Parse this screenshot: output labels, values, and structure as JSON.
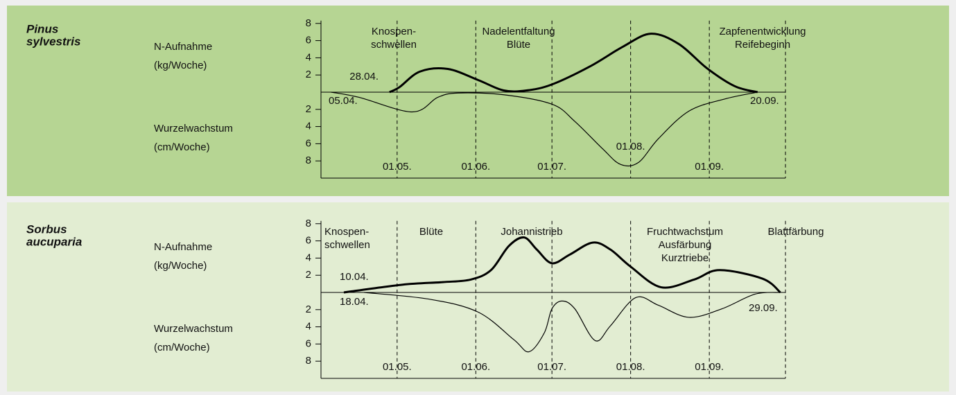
{
  "chart_data": [
    {
      "type": "line",
      "title": [
        "Pinus",
        "sylvestris"
      ],
      "phases": [
        [
          "Knospen-",
          "schwellen"
        ],
        [
          "Nadelentfaltung",
          "Blüte"
        ],
        [
          "Zapfenentwicklung",
          "Reifebeginn"
        ]
      ],
      "xlim": [
        "01.04.",
        "01.10."
      ],
      "xticks": [
        "01.05.",
        "01.06.",
        "01.07.",
        "01.08.",
        "01.09."
      ],
      "grid": true,
      "ylim": [
        0,
        8
      ],
      "yticks": [
        2,
        4,
        6,
        8
      ],
      "y2lim": [
        0,
        10
      ],
      "y2ticks": [
        2,
        4,
        6,
        8
      ],
      "y2_inverted": true,
      "series": [
        {
          "name": "N-Aufnahme",
          "unit": "(kg/Woche)",
          "color": "#000000",
          "line_width": 3,
          "x": [
            "28.04.",
            "02.05.",
            "10.05.",
            "21.05.",
            "02.06.",
            "12.06.",
            "21.06.",
            "01.07.",
            "16.07.",
            "29.07.",
            "09.08.",
            "20.08.",
            "31.08.",
            "11.09.",
            "20.09."
          ],
          "values": [
            0,
            0.6,
            2.4,
            2.7,
            1.4,
            0.2,
            0.2,
            0.9,
            3,
            5.3,
            6.8,
            5.6,
            2.8,
            0.7,
            0
          ]
        },
        {
          "name": "Wurzelwachstum",
          "unit": "(cm/Woche)",
          "color": "#000000",
          "line_width": 1.2,
          "axis": "y2",
          "x": [
            "05.04.",
            "16.04.",
            "07.05.",
            "17.05.",
            "25.05.",
            "12.06.",
            "01.07.",
            "10.07.",
            "21.07.",
            "28.07.",
            "04.08.",
            "12.08.",
            "24.08.",
            "07.09.",
            "20.09."
          ],
          "values": [
            0,
            0.6,
            2.3,
            0.6,
            0.1,
            0.3,
            1.4,
            3.4,
            6.6,
            8.4,
            8.2,
            5.4,
            2.2,
            0.8,
            0
          ]
        }
      ]
    },
    {
      "type": "line",
      "title": [
        "Sorbus",
        "aucuparia"
      ],
      "phases": [
        [
          "Knospen-",
          "schwellen"
        ],
        [
          "Blüte"
        ],
        [
          "Johannistrieb"
        ],
        [
          "Fruchtwachstum",
          "Ausfärbung",
          "Kurztriebe"
        ],
        [
          "Blattfärbung"
        ]
      ],
      "xlim": [
        "01.04.",
        "01.10."
      ],
      "xticks": [
        "01.05.",
        "01.06.",
        "01.07.",
        "01.08.",
        "01.09."
      ],
      "grid": true,
      "ylim": [
        0,
        8
      ],
      "yticks": [
        2,
        4,
        6,
        8
      ],
      "y2lim": [
        0,
        10
      ],
      "y2ticks": [
        2,
        4,
        6,
        8
      ],
      "y2_inverted": true,
      "series": [
        {
          "name": "N-Aufnahme",
          "unit": "(kg/Woche)",
          "color": "#000000",
          "line_width": 3,
          "x": [
            "10.04.",
            "03.05.",
            "19.05.",
            "30.05.",
            "07.06.",
            "14.06.",
            "20.06.",
            "25.06.",
            "01.07.",
            "08.07.",
            "17.07.",
            "24.07.",
            "01.08.",
            "13.08.",
            "26.08.",
            "05.09.",
            "22.09.",
            "29.09."
          ],
          "values": [
            0,
            0.9,
            1.2,
            1.5,
            2.6,
            5.4,
            6.4,
            5,
            3.4,
            4.4,
            5.8,
            5,
            3,
            0.6,
            1.5,
            2.6,
            1.6,
            0
          ]
        },
        {
          "name": "Wurzelwachstum",
          "unit": "(cm/Woche)",
          "color": "#000000",
          "line_width": 1.2,
          "axis": "y2",
          "x": [
            "18.04.",
            "14.05.",
            "02.06.",
            "16.06.",
            "22.06.",
            "28.06.",
            "01.07.",
            "05.07.",
            "10.07.",
            "18.07.",
            "24.07.",
            "03.08.",
            "12.08.",
            "24.08.",
            "06.09.",
            "19.09.",
            "29.09."
          ],
          "values": [
            0,
            0.8,
            2.3,
            5.5,
            6.9,
            4.7,
            1.9,
            1,
            1.9,
            5.6,
            3.9,
            0.6,
            1.5,
            2.9,
            1.9,
            0.2,
            0
          ]
        }
      ]
    }
  ]
}
